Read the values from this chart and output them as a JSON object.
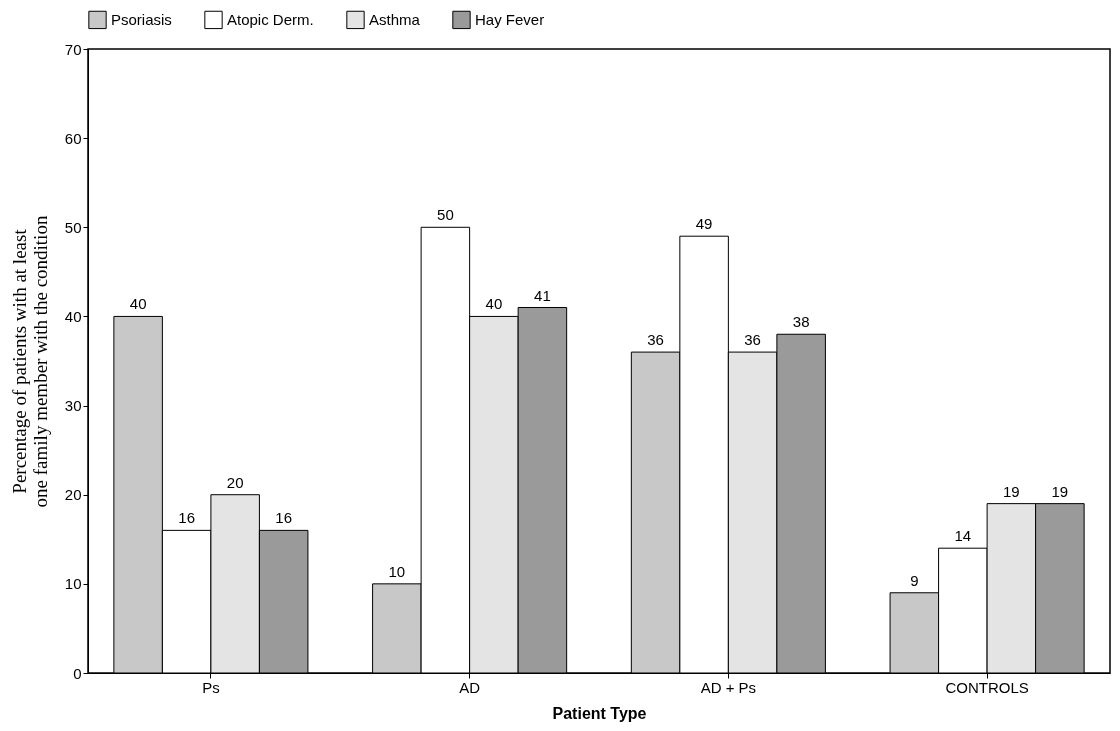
{
  "chart_data": {
    "type": "bar",
    "xlabel": "Patient Type",
    "ylabel": "Percentage of patients with at least one family member with the condition",
    "categories": [
      "Ps",
      "AD",
      "AD + Ps",
      "CONTROLS"
    ],
    "series": [
      {
        "name": "Psoriasis",
        "color": "#c8c8c8",
        "values": [
          40,
          10,
          36,
          9
        ]
      },
      {
        "name": "Atopic Derm.",
        "color": "#ffffff",
        "values": [
          16,
          50,
          49,
          14
        ]
      },
      {
        "name": "Asthma",
        "color": "#e4e4e4",
        "values": [
          20,
          40,
          36,
          19
        ]
      },
      {
        "name": "Hay Fever",
        "color": "#9a9a9a",
        "values": [
          16,
          41,
          38,
          19
        ]
      }
    ],
    "ylim": [
      0,
      70
    ],
    "yticks": [
      0,
      10,
      20,
      30,
      40,
      50,
      60,
      70
    ],
    "grid": false,
    "legend": "top",
    "data_labels": true
  }
}
